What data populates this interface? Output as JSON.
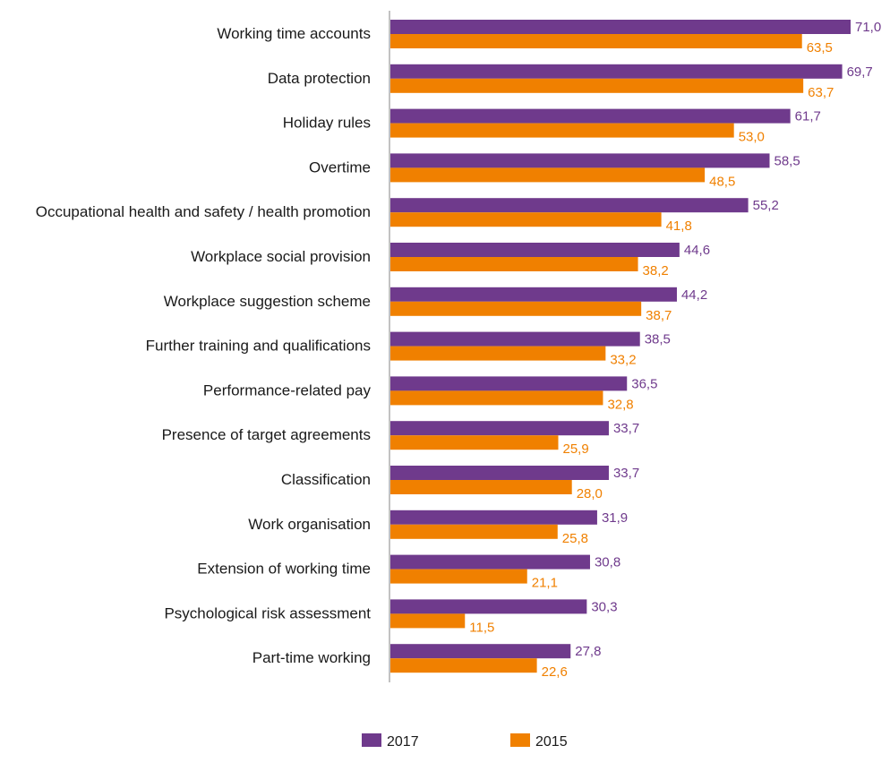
{
  "chart_data": {
    "type": "bar",
    "orientation": "horizontal",
    "categories": [
      "Working time accounts",
      "Data protection",
      "Holiday rules",
      "Overtime",
      "Occupational health and safety / health promotion",
      "Workplace social provision",
      "Workplace suggestion scheme",
      "Further training and qualifications",
      "Performance-related pay",
      "Presence of target agreements",
      "Classification",
      "Work organisation",
      "Extension of working time",
      "Psychological risk assessment",
      "Part-time working"
    ],
    "series": [
      {
        "name": "2017",
        "color": "#6f3a8c",
        "values": [
          71.0,
          69.7,
          61.7,
          58.5,
          55.2,
          44.6,
          44.2,
          38.5,
          36.5,
          33.7,
          33.7,
          31.9,
          30.8,
          30.3,
          27.8
        ],
        "labels": [
          "71,0",
          "69,7",
          "61,7",
          "58,5",
          "55,2",
          "44,6",
          "44,2",
          "38,5",
          "36,5",
          "33,7",
          "33,7",
          "31,9",
          "30,8",
          "30,3",
          "27,8"
        ]
      },
      {
        "name": "2015",
        "color": "#f08000",
        "values": [
          63.5,
          63.7,
          53.0,
          48.5,
          41.8,
          38.2,
          38.7,
          33.2,
          32.8,
          25.9,
          28.0,
          25.8,
          21.1,
          11.5,
          22.6
        ],
        "labels": [
          "63,5",
          "63,7",
          "53,0",
          "48,5",
          "41,8",
          "38,2",
          "38,7",
          "33,2",
          "32,8",
          "25,9",
          "28,0",
          "25,8",
          "21,1",
          "11,5",
          "22,6"
        ]
      }
    ],
    "xlim": [
      0,
      71
    ],
    "grid": false,
    "legend": "bottom-center",
    "title": "",
    "xlabel": "",
    "ylabel": ""
  }
}
